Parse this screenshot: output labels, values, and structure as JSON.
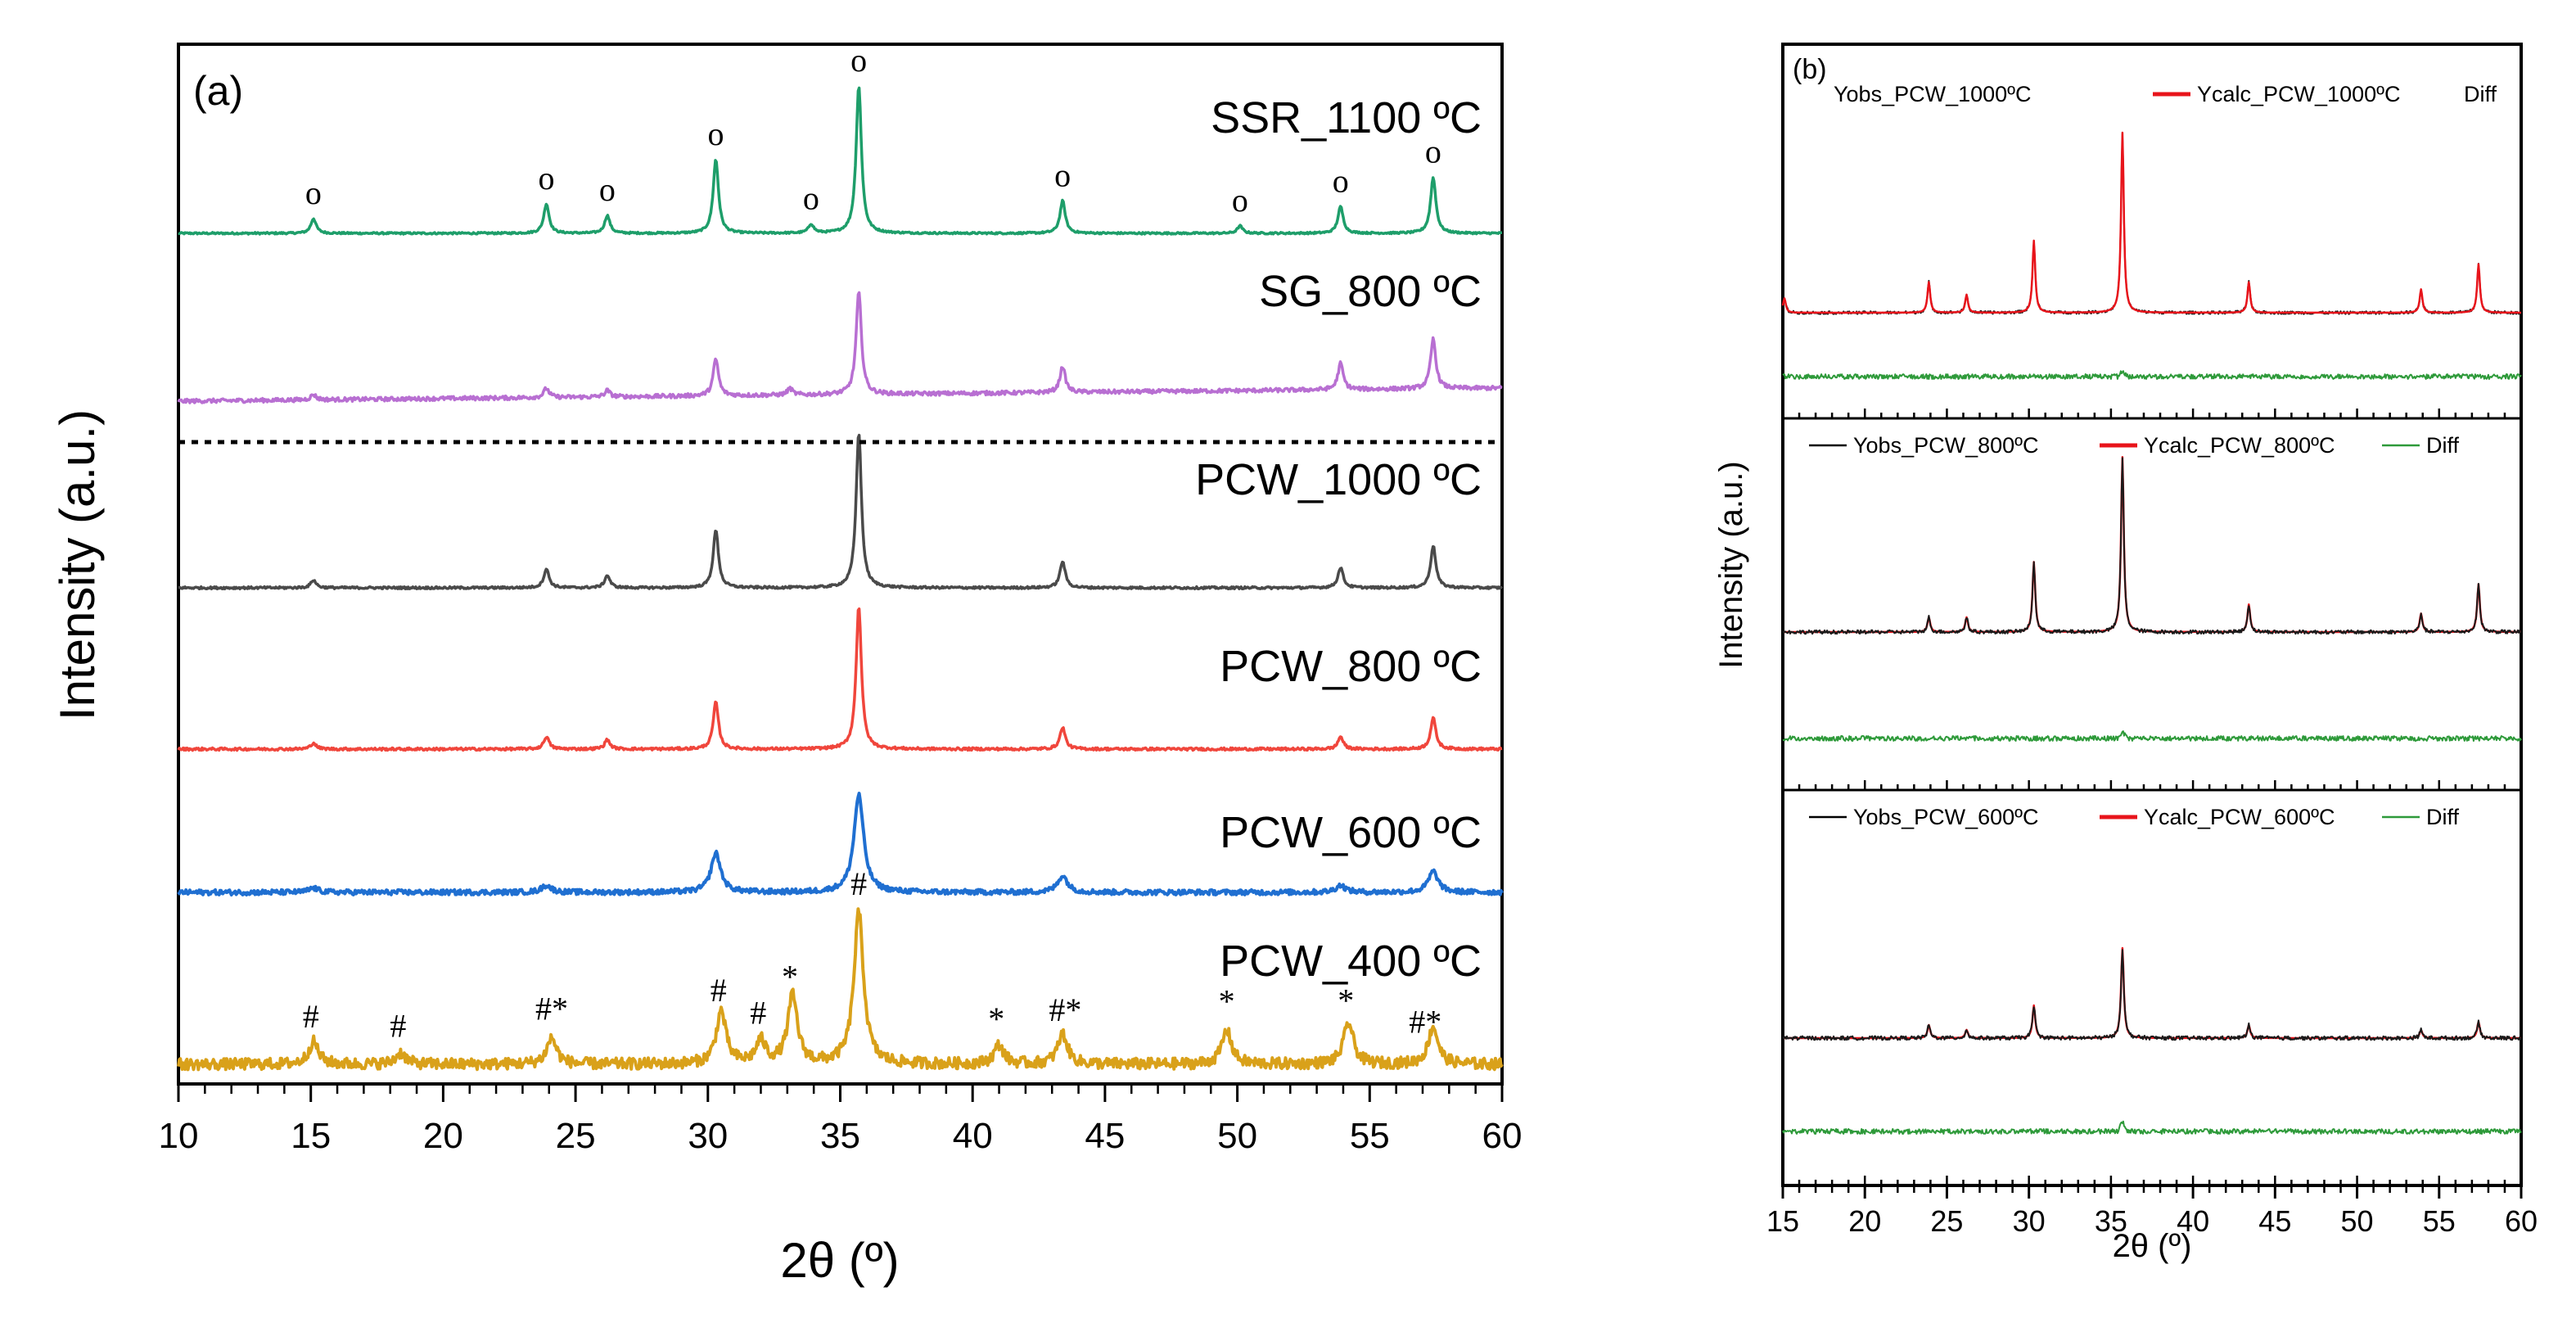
{
  "chart_data": [
    {
      "type": "line",
      "panel_label": "(a)",
      "xlabel": "2θ (º)",
      "ylabel": "Intensity (a.u.)",
      "xlim": [
        10,
        60
      ],
      "xticks": [
        10,
        15,
        20,
        25,
        30,
        35,
        40,
        45,
        50,
        55,
        60
      ],
      "yticks_shown": false,
      "separator": "dotted line between SG_800 ºC and PCW_1000 ºC",
      "series": [
        {
          "name": "SSR_1100 ºC",
          "color": "#1e9e6a",
          "noise": 0.006,
          "peaks": [
            [
              15.1,
              0.1
            ],
            [
              23.9,
              0.2
            ],
            [
              26.2,
              0.12
            ],
            [
              30.3,
              0.5
            ],
            [
              33.9,
              0.06
            ],
            [
              35.7,
              1.0
            ],
            [
              43.4,
              0.22
            ],
            [
              50.1,
              0.05
            ],
            [
              53.9,
              0.18
            ],
            [
              57.4,
              0.38
            ]
          ],
          "markers": [
            {
              "symbol": "o",
              "x": 15.1
            },
            {
              "symbol": "o",
              "x": 23.9
            },
            {
              "symbol": "o",
              "x": 26.2
            },
            {
              "symbol": "o",
              "x": 30.3
            },
            {
              "symbol": "o",
              "x": 33.9
            },
            {
              "symbol": "o",
              "x": 35.7
            },
            {
              "symbol": "o",
              "x": 43.4
            },
            {
              "symbol": "o",
              "x": 50.1
            },
            {
              "symbol": "o",
              "x": 53.9
            },
            {
              "symbol": "o",
              "x": 57.4
            }
          ]
        },
        {
          "name": "SG_800 ºC",
          "color": "#b86fd2",
          "noise": 0.015,
          "peaks": [
            [
              15.1,
              0.04
            ],
            [
              23.9,
              0.07
            ],
            [
              26.2,
              0.05
            ],
            [
              30.3,
              0.28
            ],
            [
              33.1,
              0.05
            ],
            [
              35.7,
              0.78
            ],
            [
              43.4,
              0.2
            ],
            [
              53.9,
              0.2
            ],
            [
              57.4,
              0.38
            ]
          ],
          "markers": []
        },
        {
          "name": "PCW_1000 ºC",
          "color": "#4a4a4a",
          "noise": 0.007,
          "peaks": [
            [
              15.1,
              0.05
            ],
            [
              23.9,
              0.12
            ],
            [
              26.2,
              0.08
            ],
            [
              30.3,
              0.37
            ],
            [
              35.7,
              1.0
            ],
            [
              43.4,
              0.17
            ],
            [
              53.9,
              0.13
            ],
            [
              57.4,
              0.27
            ]
          ],
          "markers": []
        },
        {
          "name": "PCW_800 ºC",
          "color": "#f0463c",
          "noise": 0.008,
          "peaks": [
            [
              15.1,
              0.04
            ],
            [
              23.9,
              0.08
            ],
            [
              26.2,
              0.06
            ],
            [
              30.3,
              0.3
            ],
            [
              35.7,
              0.92
            ],
            [
              43.4,
              0.14
            ],
            [
              53.9,
              0.08
            ],
            [
              57.4,
              0.2
            ]
          ],
          "markers": []
        },
        {
          "name": "PCW_600 ºC",
          "color": "#1f6fd1",
          "noise": 0.018,
          "peaks": [
            [
              15.1,
              0.03
            ],
            [
              23.9,
              0.05
            ],
            [
              30.3,
              0.28
            ],
            [
              35.7,
              0.7
            ],
            [
              43.4,
              0.12
            ],
            [
              53.9,
              0.05
            ],
            [
              57.4,
              0.15
            ]
          ],
          "markers": []
        },
        {
          "name": "PCW_400 ºC",
          "color": "#d9a11a",
          "noise": 0.03,
          "peaks": [
            [
              15.1,
              0.12
            ],
            [
              18.4,
              0.06
            ],
            [
              24.1,
              0.14
            ],
            [
              30.5,
              0.28
            ],
            [
              32.0,
              0.12
            ],
            [
              33.2,
              0.36
            ],
            [
              35.7,
              0.8
            ],
            [
              41.0,
              0.1
            ],
            [
              43.4,
              0.16
            ],
            [
              49.6,
              0.18
            ],
            [
              54.2,
              0.22
            ],
            [
              57.4,
              0.2
            ]
          ],
          "markers": [
            {
              "symbol": "#",
              "x": 15.0
            },
            {
              "symbol": "#",
              "x": 18.3
            },
            {
              "symbol": "#*",
              "x": 24.1
            },
            {
              "symbol": "#",
              "x": 30.4
            },
            {
              "symbol": "#",
              "x": 31.9
            },
            {
              "symbol": "*",
              "x": 33.1
            },
            {
              "symbol": "#",
              "x": 35.7
            },
            {
              "symbol": "*",
              "x": 40.9
            },
            {
              "symbol": "#*",
              "x": 43.5
            },
            {
              "symbol": "*",
              "x": 49.6
            },
            {
              "symbol": "*",
              "x": 54.1
            },
            {
              "symbol": "#*",
              "x": 57.1
            }
          ]
        }
      ]
    },
    {
      "type": "line",
      "panel_label": "(b)",
      "xlabel": "2θ (º)",
      "ylabel": "Intensity (a.u.)",
      "xlim": [
        15,
        60
      ],
      "xticks": [
        15,
        20,
        25,
        30,
        35,
        40,
        45,
        50,
        55,
        60
      ],
      "yticks_shown": false,
      "subpanels": [
        {
          "legend": [
            "Yobs_PCW_1000ºC",
            "Ycalc_PCW_1000ºC",
            "Diff"
          ],
          "legend_colors": [
            "#000000",
            "#e8141b",
            "#2e9a3a"
          ],
          "obs_color": "#1a1a1a",
          "calc_color": "#e8141b",
          "diff_color": "#2e9a3a",
          "peaks": [
            [
              15.1,
              0.08
            ],
            [
              23.9,
              0.17
            ],
            [
              26.2,
              0.1
            ],
            [
              30.3,
              0.4
            ],
            [
              35.7,
              1.0
            ],
            [
              43.4,
              0.17
            ],
            [
              53.9,
              0.13
            ],
            [
              57.4,
              0.27
            ]
          ],
          "noise": 0.008
        },
        {
          "legend": [
            "Yobs_PCW_800ºC",
            "Ycalc_PCW_800ºC",
            "Diff"
          ],
          "legend_colors": [
            "#000000",
            "#e8141b",
            "#2e9a3a"
          ],
          "obs_color": "#1a1a1a",
          "calc_color": "#e8141b",
          "diff_color": "#2e9a3a",
          "peaks": [
            [
              23.9,
              0.08
            ],
            [
              26.2,
              0.08
            ],
            [
              30.3,
              0.38
            ],
            [
              35.7,
              0.95
            ],
            [
              43.4,
              0.15
            ],
            [
              53.9,
              0.1
            ],
            [
              57.4,
              0.26
            ]
          ],
          "noise": 0.01
        },
        {
          "legend": [
            "Yobs_PCW_600ºC",
            "Ycalc_PCW_600ºC",
            "Diff"
          ],
          "legend_colors": [
            "#000000",
            "#e8141b",
            "#2e9a3a"
          ],
          "obs_color": "#1a1a1a",
          "calc_color": "#e8141b",
          "diff_color": "#2e9a3a",
          "peaks": [
            [
              23.9,
              0.08
            ],
            [
              26.2,
              0.05
            ],
            [
              30.3,
              0.2
            ],
            [
              35.7,
              0.55
            ],
            [
              43.4,
              0.08
            ],
            [
              53.9,
              0.05
            ],
            [
              57.4,
              0.1
            ]
          ],
          "noise": 0.012
        }
      ]
    }
  ]
}
